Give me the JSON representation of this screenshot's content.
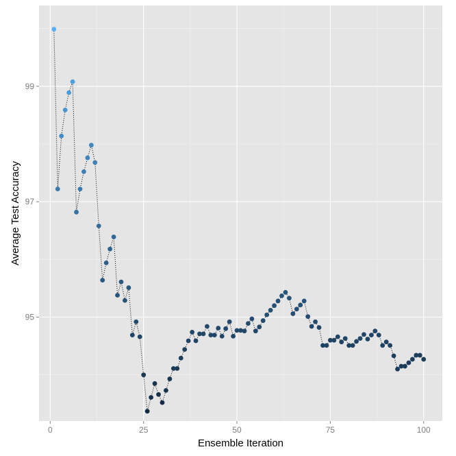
{
  "chart_data": {
    "type": "scatter",
    "xlabel": "Ensemble Iteration",
    "ylabel": "Average Test Accuracy",
    "xlim": [
      -3,
      105
    ],
    "ylim": [
      93.2,
      100.4
    ],
    "xticks": [
      0,
      25,
      50,
      75,
      100
    ],
    "yticks": [
      95,
      97,
      99
    ],
    "xtick_labels": [
      "0",
      "25",
      "50",
      "75",
      "100"
    ],
    "ytick_labels": [
      "95",
      "97",
      "99"
    ],
    "grid": true,
    "line_style": "dotted",
    "colors": {
      "panel_background": "#e5e5e5",
      "grid_major": "#ffffff",
      "grid_minor": "#f2f2f2",
      "point_light": "#56b1f7",
      "point_dark": "#132b43",
      "connector": "#000000"
    },
    "x": [
      1,
      2,
      3,
      4,
      5,
      6,
      7,
      8,
      9,
      10,
      11,
      12,
      13,
      14,
      15,
      16,
      17,
      18,
      19,
      20,
      21,
      22,
      23,
      24,
      25,
      26,
      27,
      28,
      29,
      30,
      31,
      32,
      33,
      34,
      35,
      36,
      37,
      38,
      39,
      40,
      41,
      42,
      43,
      44,
      45,
      46,
      47,
      48,
      49,
      50,
      51,
      52,
      53,
      54,
      55,
      56,
      57,
      58,
      59,
      60,
      61,
      62,
      63,
      64,
      65,
      66,
      67,
      68,
      69,
      70,
      71,
      72,
      73,
      74,
      75,
      76,
      77,
      78,
      79,
      80,
      81,
      82,
      83,
      84,
      85,
      86,
      87,
      88,
      89,
      90,
      91,
      92,
      93,
      94,
      95,
      96,
      97,
      98,
      99,
      100
    ],
    "y": [
      99.99,
      97.22,
      98.14,
      98.59,
      98.89,
      99.08,
      96.82,
      97.22,
      97.52,
      97.76,
      97.98,
      97.68,
      96.58,
      95.64,
      95.94,
      96.18,
      96.39,
      95.38,
      95.61,
      95.29,
      95.51,
      94.69,
      94.92,
      94.66,
      94.0,
      93.37,
      93.61,
      93.85,
      93.66,
      93.52,
      93.73,
      93.93,
      94.11,
      94.11,
      94.29,
      94.44,
      94.59,
      94.74,
      94.59,
      94.71,
      94.71,
      94.84,
      94.69,
      94.69,
      94.81,
      94.67,
      94.8,
      94.92,
      94.67,
      94.77,
      94.77,
      94.76,
      94.89,
      94.97,
      94.76,
      94.83,
      94.94,
      95.04,
      95.12,
      95.2,
      95.28,
      95.37,
      95.43,
      95.33,
      95.06,
      95.14,
      95.21,
      95.28,
      95.01,
      94.84,
      94.92,
      94.82,
      94.51,
      94.51,
      94.6,
      94.6,
      94.66,
      94.57,
      94.63,
      94.51,
      94.51,
      94.58,
      94.63,
      94.7,
      94.62,
      94.69,
      94.76,
      94.69,
      94.51,
      94.57,
      94.51,
      94.33,
      94.1,
      94.15,
      94.15,
      94.21,
      94.27,
      94.34,
      94.34,
      94.27
    ]
  }
}
